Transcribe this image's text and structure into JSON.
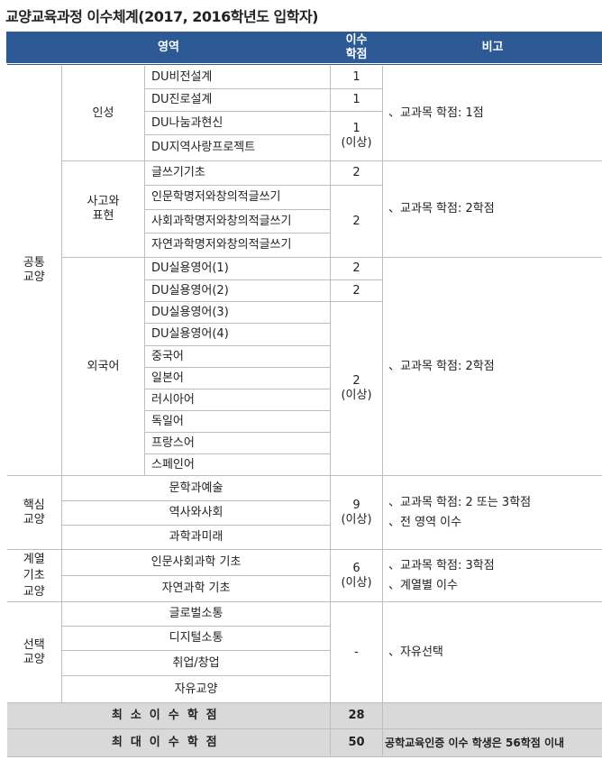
{
  "title": "교양교육과정 이수체계(2017, 2016학년도 입학자)",
  "header": {
    "area": "영역",
    "credits": "이수\n학점",
    "remarks": "비고"
  },
  "groups": {
    "common": "공통\n교양",
    "insung": "인성",
    "sago": "사고와\n표현",
    "foreign": "외국어",
    "core": "핵심\n교양",
    "basic": "계열\n기초\n교양",
    "elective": "선택\n교양"
  },
  "courses": {
    "insung": [
      "DU비전설계",
      "DU진로설계",
      "DU나눔과현신",
      "DU지역사랑프로젝트"
    ],
    "sago": [
      "글쓰기기초",
      "인문학명저와창의적글쓰기",
      "사회과학명저와창의적글쓰기",
      "자연과학명저와창의적글쓰기"
    ],
    "foreign": [
      "DU실용영어(1)",
      "DU실용영어(2)",
      "DU실용영어(3)",
      "DU실용영어(4)",
      "중국어",
      "일본어",
      "러시아어",
      "독일어",
      "프랑스어",
      "스페인어"
    ],
    "core": [
      "문학과예술",
      "역사와사회",
      "과학과미래"
    ],
    "basic": [
      "인문사회과학 기초",
      "자연과학 기초"
    ],
    "elective": [
      "글로벌소통",
      "디지털소통",
      "취업/창업",
      "자유교양"
    ]
  },
  "credits": {
    "one": "1",
    "one_more": "1\n(이상)",
    "two": "2",
    "two_more": "2\n(이상)",
    "nine": "9\n(이상)",
    "six": "6\n(이상)",
    "dash": "-"
  },
  "remarks": {
    "insung": "、교과목 학점: 1점",
    "sago": "、교과목 학점: 2학점",
    "foreign": "、교과목 학점: 2학점",
    "core": "、교과목 학점: 2 또는 3학점\n、전 영역 이수",
    "basic": "、교과목 학점: 3학점\n、계열별 이수",
    "elective": "、자유선택"
  },
  "footer": {
    "min_label": "최소이수학점",
    "min_value": "28",
    "min_note": "",
    "max_label": "최대이수학점",
    "max_value": "50",
    "max_note": "공학교육인증 이수 학생은 56학점 이내"
  },
  "colors": {
    "header": "#2d5a94",
    "footer": "#d9d9d9",
    "border": "#bdbdbd"
  }
}
